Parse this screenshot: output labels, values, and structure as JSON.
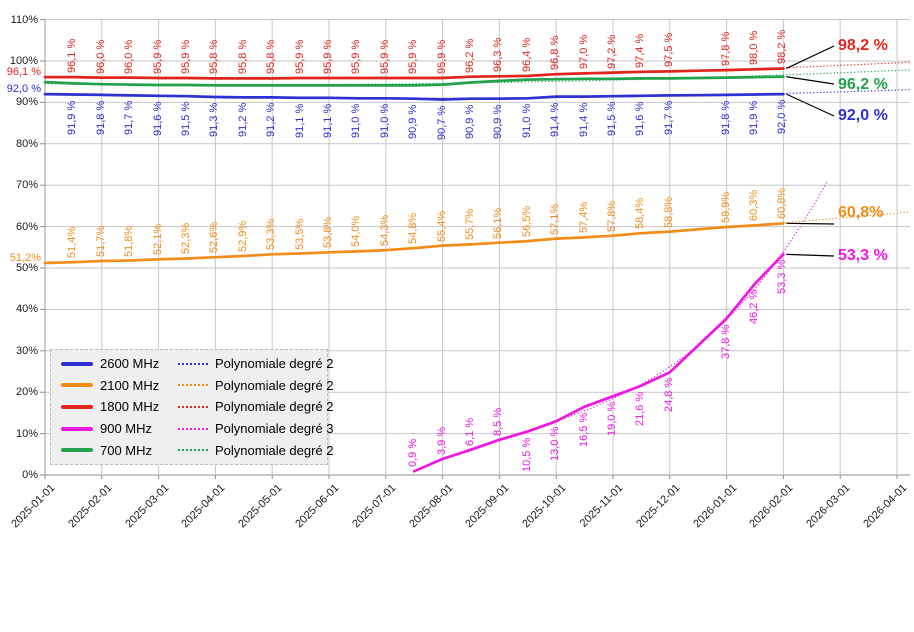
{
  "chart_data": {
    "type": "line",
    "title": "",
    "x_axis": {
      "tick_labels": [
        "2025-01-01",
        "2025-02-01",
        "2025-03-01",
        "2025-04-01",
        "2025-05-01",
        "2025-06-01",
        "2025-07-01",
        "2025-08-01",
        "2025-09-01",
        "2025-10-01",
        "2025-11-01",
        "2025-12-01",
        "2026-01-01",
        "2026-02-01",
        "2026-03-01",
        "2026-04-01"
      ],
      "points_per_month": 2
    },
    "y_axis": {
      "tick_labels": [
        "0%",
        "10%",
        "20%",
        "30%",
        "40%",
        "50%",
        "60%",
        "70%",
        "80%",
        "90%",
        "100%",
        "110%"
      ],
      "min": 0,
      "max": 110,
      "step": 10,
      "format": "percent"
    },
    "grid": true,
    "legend_position": "inside-bottom-left",
    "series": [
      {
        "name": "2600 MHz",
        "color": "#2f2fd3",
        "start_index": 0,
        "values": [
          92.0,
          91.9,
          91.8,
          91.7,
          91.6,
          91.5,
          91.3,
          91.2,
          91.2,
          91.1,
          91.1,
          91.0,
          91.0,
          90.9,
          90.7,
          90.9,
          90.9,
          91.0,
          91.4,
          91.4,
          91.5,
          91.6,
          91.7,
          91.75,
          91.8,
          91.9,
          92.0
        ],
        "label_placement": "below",
        "first_label": "horizontal",
        "percent_space": true,
        "hidden_label_indices": [
          23
        ],
        "end_label": "92,0 %",
        "trend": {
          "label": "Polynomiale degré 2",
          "degree": 2
        }
      },
      {
        "name": "2100 MHz",
        "color": "#f28c1a",
        "start_index": 0,
        "values": [
          51.2,
          51.4,
          51.7,
          51.8,
          52.1,
          52.3,
          52.6,
          52.9,
          53.3,
          53.5,
          53.8,
          54.0,
          54.3,
          54.8,
          55.4,
          55.7,
          56.1,
          56.5,
          57.1,
          57.4,
          57.8,
          58.4,
          58.8,
          59.35,
          59.9,
          60.3,
          60.8
        ],
        "label_placement": "above",
        "first_label": "horizontal",
        "percent_space": false,
        "hidden_label_indices": [
          23
        ],
        "end_label": "60,8%",
        "trend": {
          "label": "Polynomiale degré 2",
          "degree": 2
        }
      },
      {
        "name": "1800 MHz",
        "color": "#e0251c",
        "start_index": 0,
        "values": [
          96.1,
          96.1,
          96.0,
          96.0,
          95.9,
          95.9,
          95.8,
          95.8,
          95.8,
          95.9,
          95.9,
          95.9,
          95.9,
          95.9,
          95.9,
          96.2,
          96.3,
          96.4,
          96.8,
          97.0,
          97.2,
          97.4,
          97.5,
          97.65,
          97.8,
          98.0,
          98.2
        ],
        "label_placement": "above",
        "first_label": "horizontal",
        "percent_space": true,
        "hidden_label_indices": [
          23
        ],
        "end_label": "98,2 %",
        "trend": {
          "label": "Polynomiale degré 2",
          "degree": 2
        }
      },
      {
        "name": "900 MHz",
        "color": "#ee17e3",
        "start_index": 13,
        "values": [
          0.9,
          3.9,
          6.1,
          8.5,
          10.5,
          13.0,
          16.5,
          19.0,
          21.6,
          24.8,
          31.3,
          37.8,
          46.2,
          53.3
        ],
        "label_placement": "above",
        "below_from_index": 17,
        "percent_space": true,
        "hidden_label_indices": [
          23
        ],
        "end_label": "53,3 %",
        "trend": {
          "label": "Polynomiale degré 3",
          "degree": 3
        }
      },
      {
        "name": "700 MHz",
        "color": "#22a24b",
        "start_index": 0,
        "values": [
          94.9,
          94.6,
          94.4,
          94.3,
          94.2,
          94.2,
          94.1,
          94.1,
          94.1,
          94.1,
          94.1,
          94.1,
          94.1,
          94.1,
          94.3,
          94.8,
          95.2,
          95.5,
          95.6,
          95.7,
          95.7,
          95.8,
          95.8,
          95.9,
          96.0,
          96.1,
          96.2
        ],
        "labels": false,
        "percent_space": true,
        "end_label": "96,2 %",
        "trend": {
          "label": "Polynomiale degré 2",
          "degree": 2
        }
      }
    ],
    "colors": {
      "grid": "#c6c6c6",
      "axis": "#8f8f8f",
      "callout": "#000000",
      "legend_bg": "#efefef"
    }
  }
}
